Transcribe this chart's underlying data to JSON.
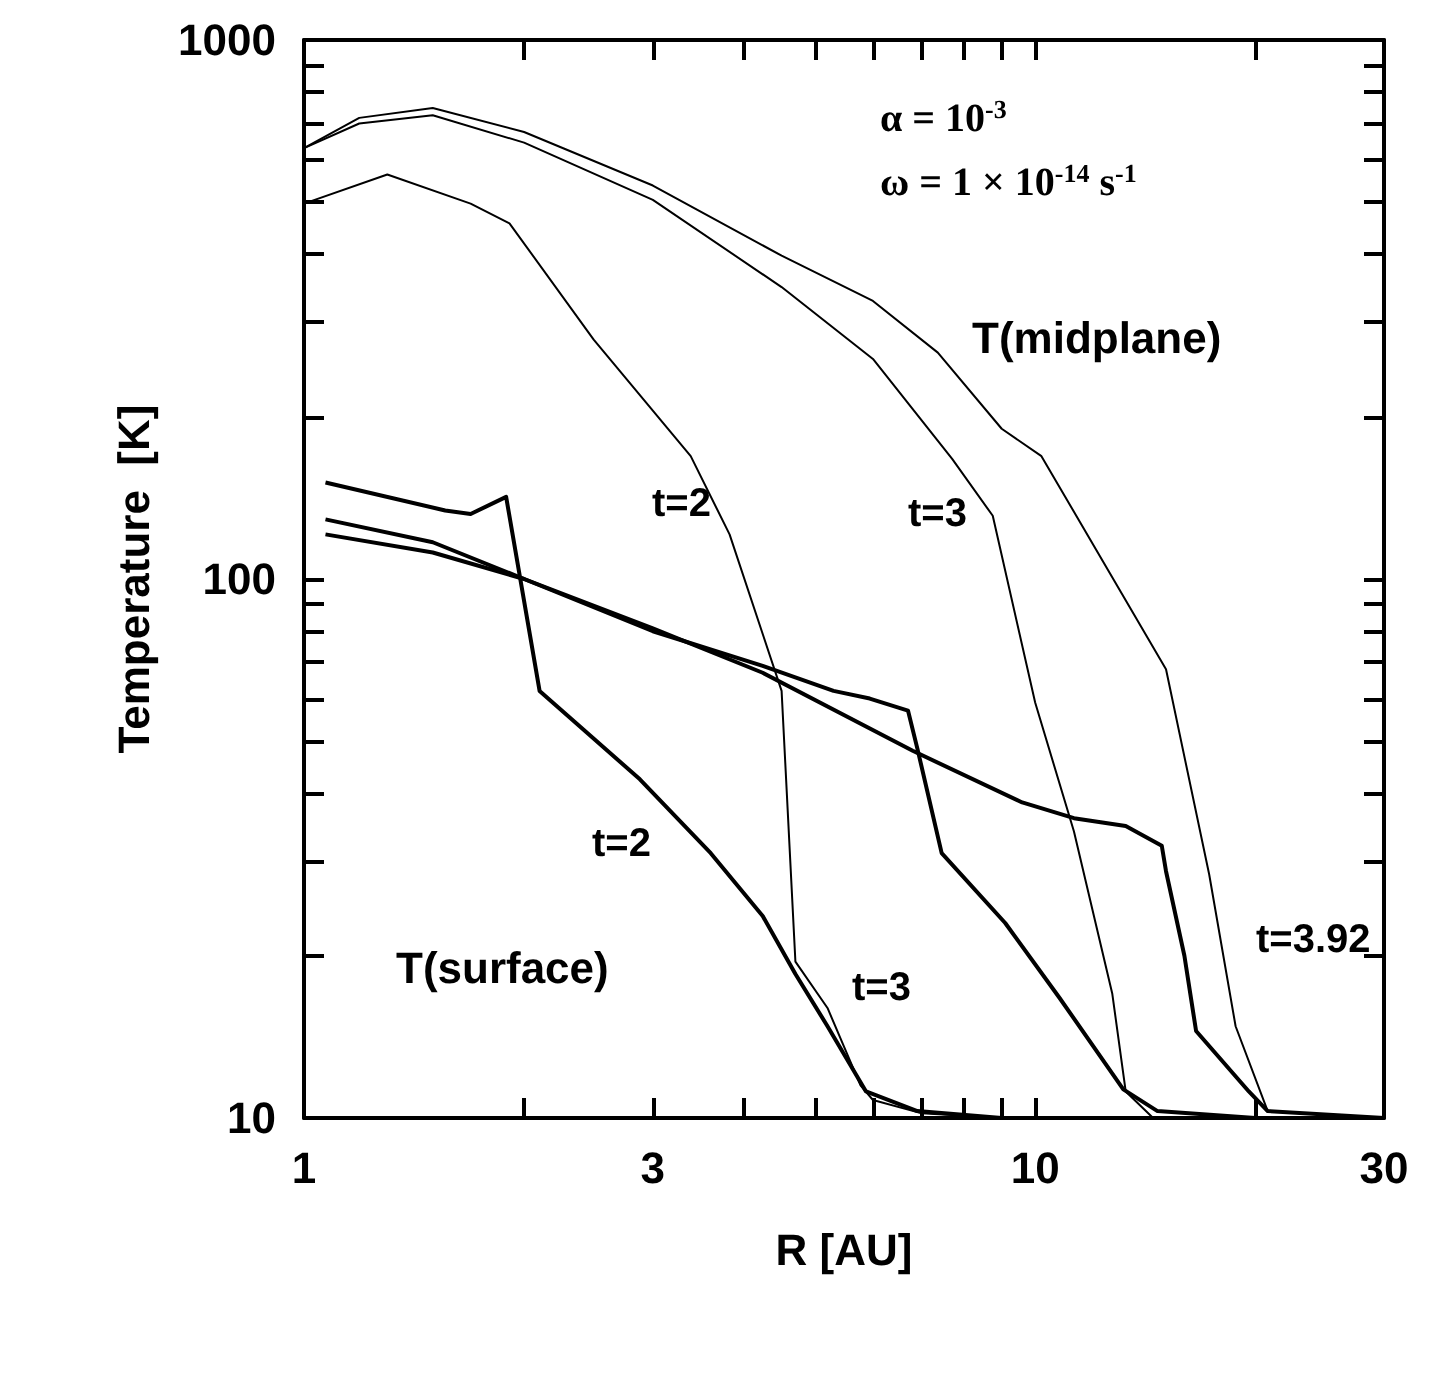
{
  "chart_data": {
    "type": "line",
    "xlabel": "R [AU]",
    "ylabel": "Temperature  [K]",
    "log": "xy",
    "grid": false,
    "marker": "none",
    "line_style": "solid",
    "xlim": [
      1,
      30
    ],
    "ylim": [
      10,
      1000
    ],
    "xticks": [
      1,
      {
        "value": 2,
        "label": null
      },
      3,
      {
        "value": 4,
        "label": null
      },
      {
        "value": 5,
        "label": null
      },
      {
        "value": 6,
        "label": null
      },
      {
        "value": 7,
        "label": null
      },
      {
        "value": 8,
        "label": null
      },
      {
        "value": 9,
        "label": null
      },
      10,
      {
        "value": 20,
        "label": null
      },
      30
    ],
    "yticks": [
      10,
      {
        "value": 20,
        "label": null
      },
      {
        "value": 30,
        "label": null
      },
      {
        "value": 40,
        "label": null
      },
      {
        "value": 50,
        "label": null
      },
      {
        "value": 60,
        "label": null
      },
      {
        "value": 70,
        "label": null
      },
      {
        "value": 80,
        "label": null
      },
      {
        "value": 90,
        "label": null
      },
      100,
      {
        "value": 200,
        "label": null
      },
      {
        "value": 300,
        "label": null
      },
      {
        "value": 400,
        "label": null
      },
      {
        "value": 500,
        "label": null
      },
      {
        "value": 600,
        "label": null
      },
      {
        "value": 700,
        "label": null
      },
      {
        "value": 800,
        "label": null
      },
      {
        "value": 900,
        "label": null
      },
      1000
    ],
    "series": [
      {
        "color": "#000000",
        "x": [
          1,
          1.3,
          1.69,
          1.91,
          2.49,
          3.38,
          3.82,
          4.5,
          4.7,
          5.2,
          5.77,
          6,
          7,
          9
        ],
        "values": [
          497,
          563,
          497,
          457,
          278,
          169,
          121,
          62,
          19.5,
          16,
          11.5,
          10.8,
          10.2,
          10
        ]
      },
      {
        "color": "#000000",
        "x": [
          1,
          1.19,
          1.5,
          2,
          3,
          4.5,
          6,
          7.7,
          8.75,
          10,
          11.3,
          12.75,
          13.3,
          14.5,
          20
        ],
        "values": [
          630,
          700,
          725,
          645,
          505,
          348,
          256,
          167,
          131,
          59,
          34,
          17,
          11.2,
          10,
          10
        ]
      },
      {
        "color": "#000000",
        "x": [
          1,
          1.19,
          1.5,
          2,
          3,
          4.5,
          6,
          7.36,
          9,
          10.2,
          15.1,
          17.3,
          18.8,
          20.8,
          30
        ],
        "values": [
          630,
          717,
          748,
          675,
          537,
          398,
          328,
          263,
          190,
          169,
          68,
          28.3,
          14.8,
          10.3,
          10
        ]
      },
      {
        "color": "#000000",
        "x": [
          1.07,
          1.56,
          1.69,
          1.89,
          2.1,
          2.88,
          3.6,
          4.24,
          4.7,
          5.2,
          5.87,
          6.9,
          9
        ],
        "values": [
          151,
          134,
          132,
          142,
          62,
          42.5,
          31,
          23.7,
          18.5,
          14.8,
          11.2,
          10.3,
          10
        ]
      },
      {
        "color": "#000000",
        "x": [
          1.07,
          1.5,
          2,
          3,
          4.24,
          5.3,
          5.94,
          6.7,
          6.9,
          7.45,
          9.1,
          10.8,
          13.2,
          14.7,
          20
        ],
        "values": [
          129,
          117,
          100,
          80,
          69,
          62,
          60,
          57,
          48.5,
          31,
          23,
          16.7,
          11.3,
          10.3,
          10
        ]
      },
      {
        "color": "#000000",
        "x": [
          1.07,
          1.5,
          2,
          3,
          4.24,
          6.8,
          9.6,
          11.3,
          13.3,
          14.9,
          15.1,
          16,
          16.6,
          19.6,
          20.8,
          30
        ],
        "values": [
          121,
          112,
          100,
          81,
          67,
          48,
          38.5,
          36,
          34.8,
          32,
          28.7,
          20,
          14.5,
          11.2,
          10.3,
          10
        ]
      }
    ],
    "annotations": [
      "α = 10$^{-3}$",
      "ω = 1 × 10$^{-14}$ s$^{-1}$",
      "T(midplane)",
      "T(surface)",
      "t=2",
      "t=3",
      "t=2",
      "t=3",
      "t=3.92"
    ]
  }
}
